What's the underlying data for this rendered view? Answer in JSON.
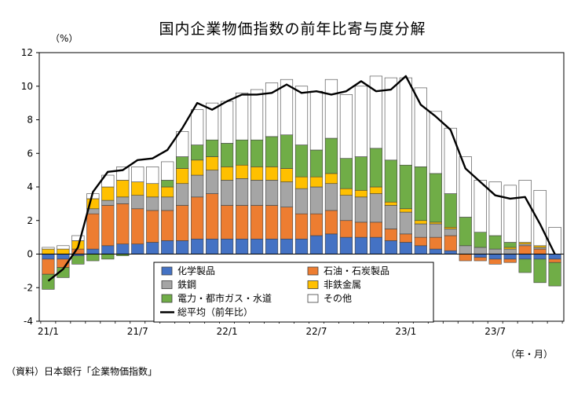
{
  "chart_data": {
    "type": "bar",
    "title": "国内企業物価指数の前年比寄与度分解",
    "y_unit": "（%）",
    "x_unit": "（年・月）",
    "source": "（資料）日本銀行「企業物価指数」",
    "ylim": [
      -4,
      12
    ],
    "yticks": [
      "-4",
      "-2",
      "0",
      "2",
      "4",
      "6",
      "8",
      "10",
      "12"
    ],
    "x_tick_labels": [
      {
        "index": 0,
        "label": "21/1"
      },
      {
        "index": 6,
        "label": "21/7"
      },
      {
        "index": 12,
        "label": "22/1"
      },
      {
        "index": 18,
        "label": "22/7"
      },
      {
        "index": 24,
        "label": "23/1"
      },
      {
        "index": 30,
        "label": "23/7"
      }
    ],
    "stacked": true,
    "series": [
      {
        "name": "化学製品",
        "color": "#4472c4",
        "values": [
          -0.3,
          -0.3,
          -0.1,
          0.3,
          0.5,
          0.6,
          0.6,
          0.7,
          0.8,
          0.8,
          0.9,
          0.9,
          0.9,
          0.9,
          0.9,
          0.9,
          0.9,
          0.9,
          1.1,
          1.2,
          1.0,
          1.0,
          1.0,
          0.8,
          0.7,
          0.5,
          0.3,
          0.2,
          0.0,
          -0.2,
          -0.3,
          -0.3,
          -0.3,
          -0.3,
          -0.3
        ]
      },
      {
        "name": "石油・石炭製品",
        "color": "#ed7d31",
        "values": [
          -0.9,
          -0.5,
          0.3,
          2.1,
          2.4,
          2.4,
          2.1,
          1.9,
          1.8,
          2.1,
          2.5,
          2.7,
          2.0,
          2.0,
          2.0,
          2.0,
          1.9,
          1.5,
          1.3,
          1.4,
          1.0,
          0.9,
          0.9,
          0.7,
          0.5,
          0.5,
          0.7,
          0.9,
          -0.4,
          -0.2,
          -0.3,
          -0.2,
          0.5,
          0.3,
          -0.2
        ]
      },
      {
        "name": "鉄鋼",
        "color": "#a5a5a5",
        "values": [
          0.0,
          0.0,
          0.0,
          0.3,
          0.3,
          0.4,
          0.8,
          0.8,
          0.8,
          1.3,
          1.3,
          1.4,
          1.5,
          1.6,
          1.5,
          1.5,
          1.5,
          1.5,
          1.6,
          1.6,
          1.5,
          1.5,
          1.7,
          1.4,
          1.3,
          0.8,
          0.8,
          0.4,
          0.5,
          0.4,
          0.3,
          0.3,
          0.1,
          0.1,
          0.0
        ]
      },
      {
        "name": "非鉄金属",
        "color": "#ffc000",
        "values": [
          0.3,
          0.3,
          0.5,
          0.6,
          0.8,
          1.0,
          0.8,
          0.8,
          0.6,
          0.9,
          0.9,
          0.8,
          0.8,
          0.8,
          0.8,
          0.8,
          0.8,
          0.7,
          0.6,
          0.6,
          0.4,
          0.4,
          0.4,
          0.2,
          0.2,
          0.2,
          0.1,
          0.1,
          0.0,
          0.0,
          0.0,
          0.1,
          0.1,
          0.1,
          0.0
        ]
      },
      {
        "name": "電力・都市ガス・水道",
        "color": "#70ad47",
        "values": [
          -0.9,
          -0.6,
          -0.5,
          -0.4,
          -0.3,
          -0.1,
          0.0,
          0.0,
          0.4,
          0.7,
          0.9,
          1.0,
          1.4,
          1.5,
          1.6,
          1.8,
          2.0,
          1.9,
          1.6,
          2.1,
          1.8,
          2.0,
          2.3,
          2.5,
          2.6,
          3.2,
          2.9,
          2.0,
          1.7,
          0.9,
          0.8,
          0.3,
          -0.8,
          -1.4,
          -1.4
        ]
      },
      {
        "name": "その他",
        "color": "#ffffff",
        "values": [
          0.1,
          0.2,
          0.3,
          0.3,
          0.7,
          0.8,
          0.9,
          1.0,
          1.1,
          1.5,
          2.1,
          2.2,
          2.5,
          2.8,
          3.0,
          3.2,
          3.3,
          3.5,
          3.5,
          3.5,
          3.8,
          4.2,
          4.3,
          4.9,
          5.2,
          4.7,
          3.7,
          3.9,
          3.6,
          3.1,
          3.2,
          3.4,
          3.7,
          3.3,
          1.6
        ]
      },
      {
        "name": "総平均（前年比）",
        "color": "#000000",
        "kind": "line",
        "values": [
          -1.6,
          -0.9,
          0.4,
          3.7,
          4.9,
          5.0,
          5.6,
          5.7,
          6.2,
          7.5,
          9.0,
          8.6,
          9.1,
          9.5,
          9.5,
          9.6,
          10.1,
          9.6,
          9.7,
          9.5,
          9.7,
          10.3,
          9.7,
          9.8,
          10.6,
          8.9,
          8.2,
          7.4,
          5.1,
          4.3,
          3.5,
          3.3,
          3.4,
          1.8,
          0.0
        ]
      }
    ],
    "legend": {
      "placement": "bottom-center",
      "line_label": "総平均（前年比）"
    }
  }
}
